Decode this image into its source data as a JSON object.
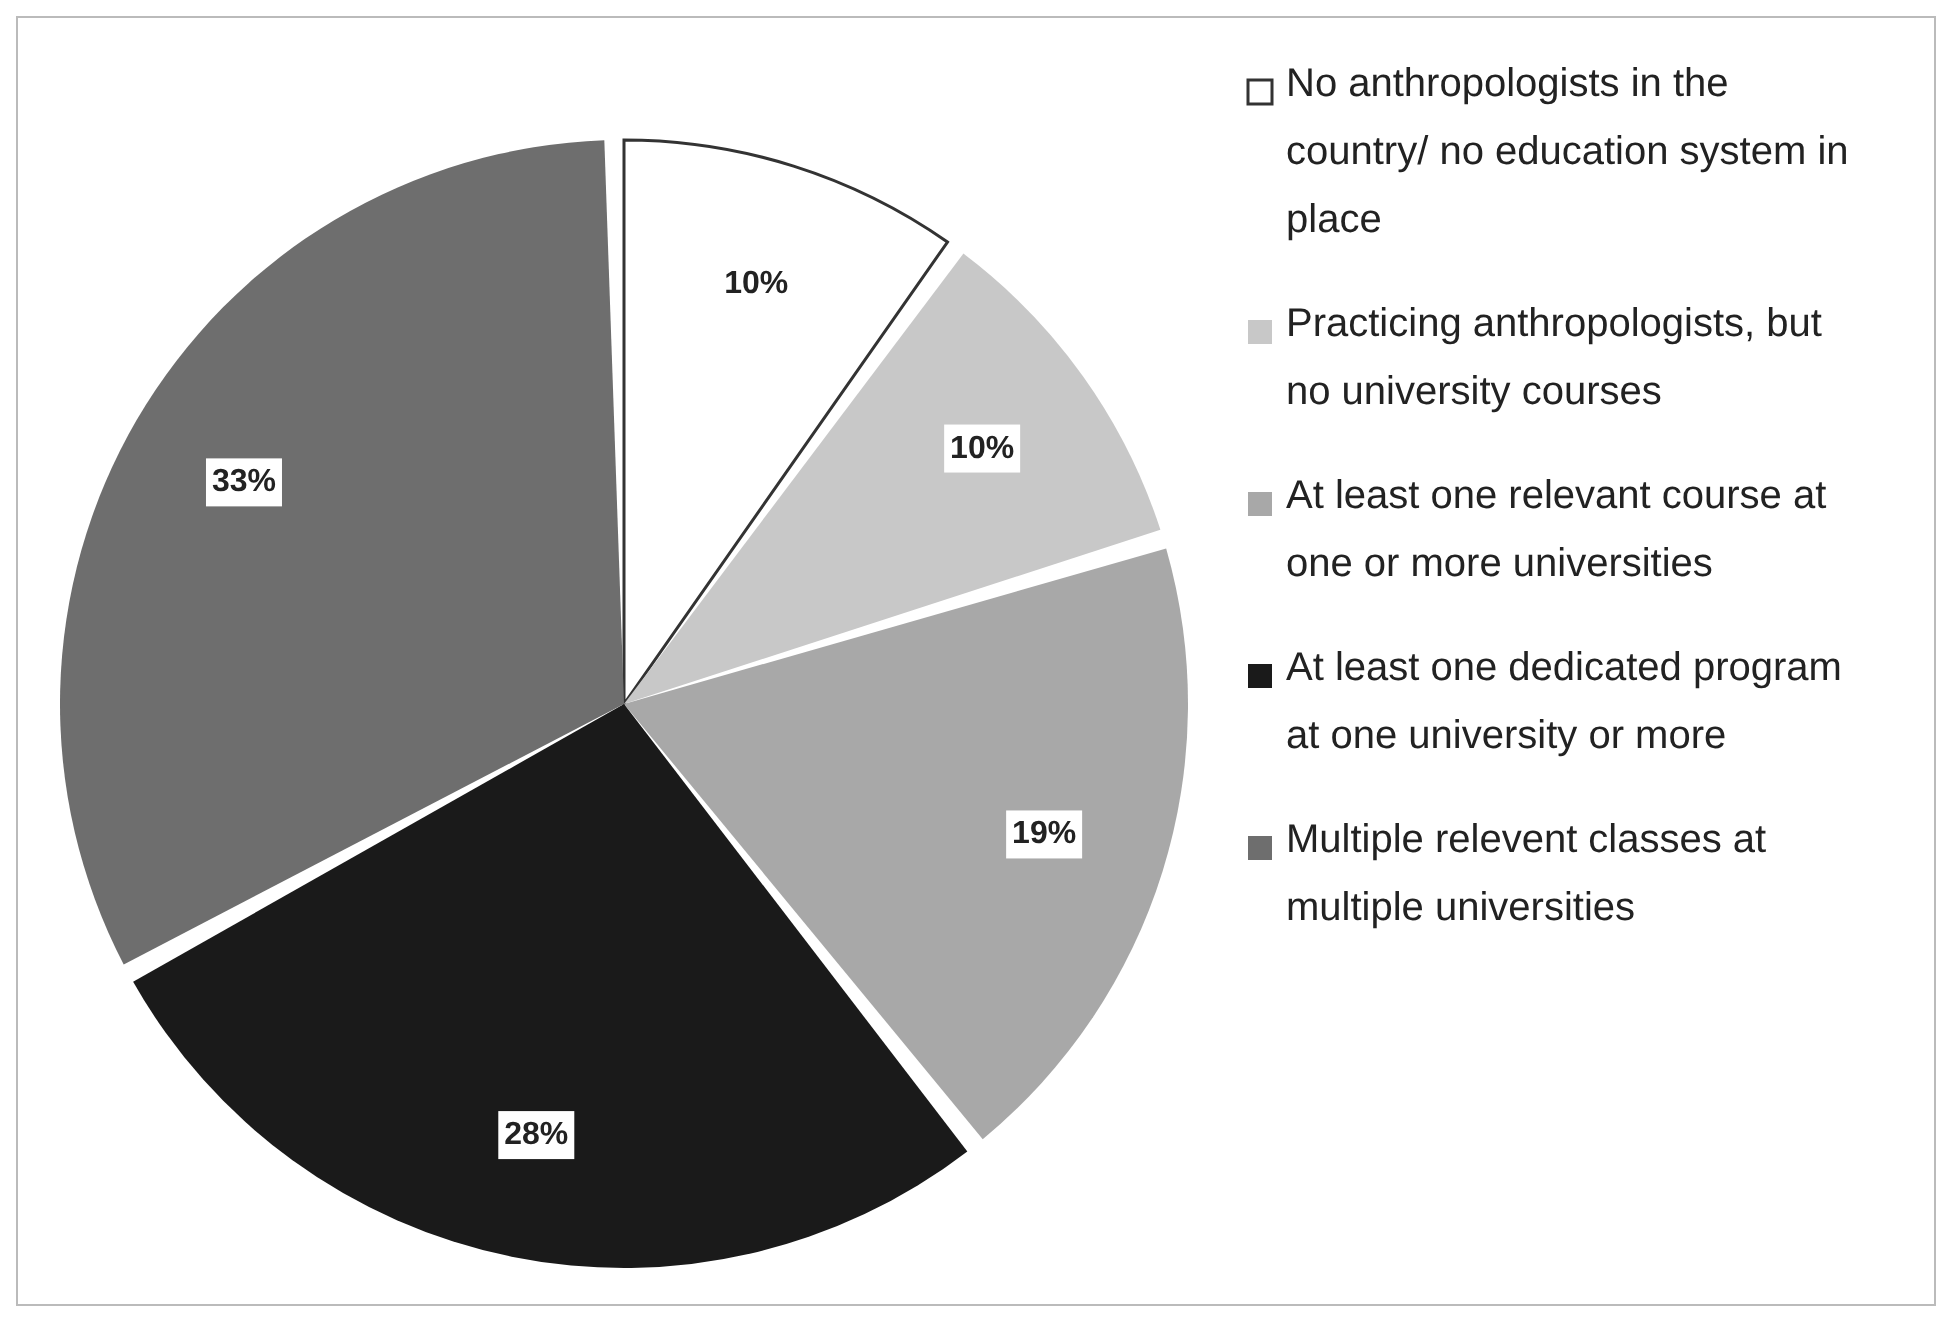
{
  "chart_data": {
    "type": "pie",
    "categories": [
      "No anthropologists in the country/ no education system in place",
      "Practicing anthropologists, but no university courses",
      "At least one relevant course at one or more universities",
      "At least one dedicated program at one university or more",
      "Multiple relevent classes at multiple universities"
    ],
    "values": [
      10,
      10,
      19,
      28,
      33
    ],
    "value_labels": [
      "10%",
      "10%",
      "19%",
      "28%",
      "33%"
    ],
    "colors": [
      "#ffffff",
      "#c8c8c8",
      "#a8a8a8",
      "#1a1a1a",
      "#6e6e6e"
    ],
    "legend": "right"
  }
}
